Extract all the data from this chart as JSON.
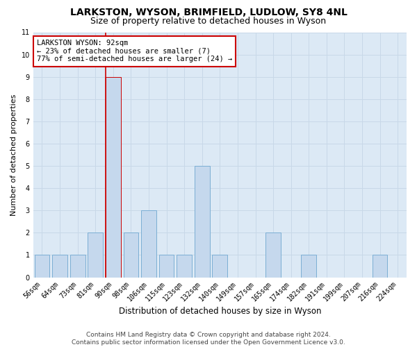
{
  "title": "LARKSTON, WYSON, BRIMFIELD, LUDLOW, SY8 4NL",
  "subtitle": "Size of property relative to detached houses in Wyson",
  "xlabel": "Distribution of detached houses by size in Wyson",
  "ylabel": "Number of detached properties",
  "categories": [
    "56sqm",
    "64sqm",
    "73sqm",
    "81sqm",
    "90sqm",
    "98sqm",
    "106sqm",
    "115sqm",
    "123sqm",
    "132sqm",
    "140sqm",
    "149sqm",
    "157sqm",
    "165sqm",
    "174sqm",
    "182sqm",
    "191sqm",
    "199sqm",
    "207sqm",
    "216sqm",
    "224sqm"
  ],
  "values": [
    1,
    1,
    1,
    2,
    9,
    2,
    3,
    1,
    1,
    5,
    1,
    0,
    0,
    2,
    0,
    1,
    0,
    0,
    0,
    1,
    0
  ],
  "bar_color": "#c5d8ed",
  "bar_edge_color": "#7baed4",
  "highlight_bar_index": 4,
  "highlight_edge_color": "#cc0000",
  "highlight_line_color": "#cc0000",
  "annotation_text": "LARKSTON WYSON: 92sqm\n← 23% of detached houses are smaller (7)\n77% of semi-detached houses are larger (24) →",
  "annotation_box_color": "#ffffff",
  "annotation_box_edge_color": "#cc0000",
  "ylim": [
    0,
    11
  ],
  "yticks": [
    0,
    1,
    2,
    3,
    4,
    5,
    6,
    7,
    8,
    9,
    10,
    11
  ],
  "grid_color": "#c8d8e8",
  "bg_color": "#dce9f5",
  "footnote": "Contains HM Land Registry data © Crown copyright and database right 2024.\nContains public sector information licensed under the Open Government Licence v3.0.",
  "title_fontsize": 10,
  "subtitle_fontsize": 9,
  "tick_fontsize": 7,
  "ylabel_fontsize": 8,
  "xlabel_fontsize": 8.5,
  "annot_fontsize": 7.5,
  "footnote_fontsize": 6.5
}
